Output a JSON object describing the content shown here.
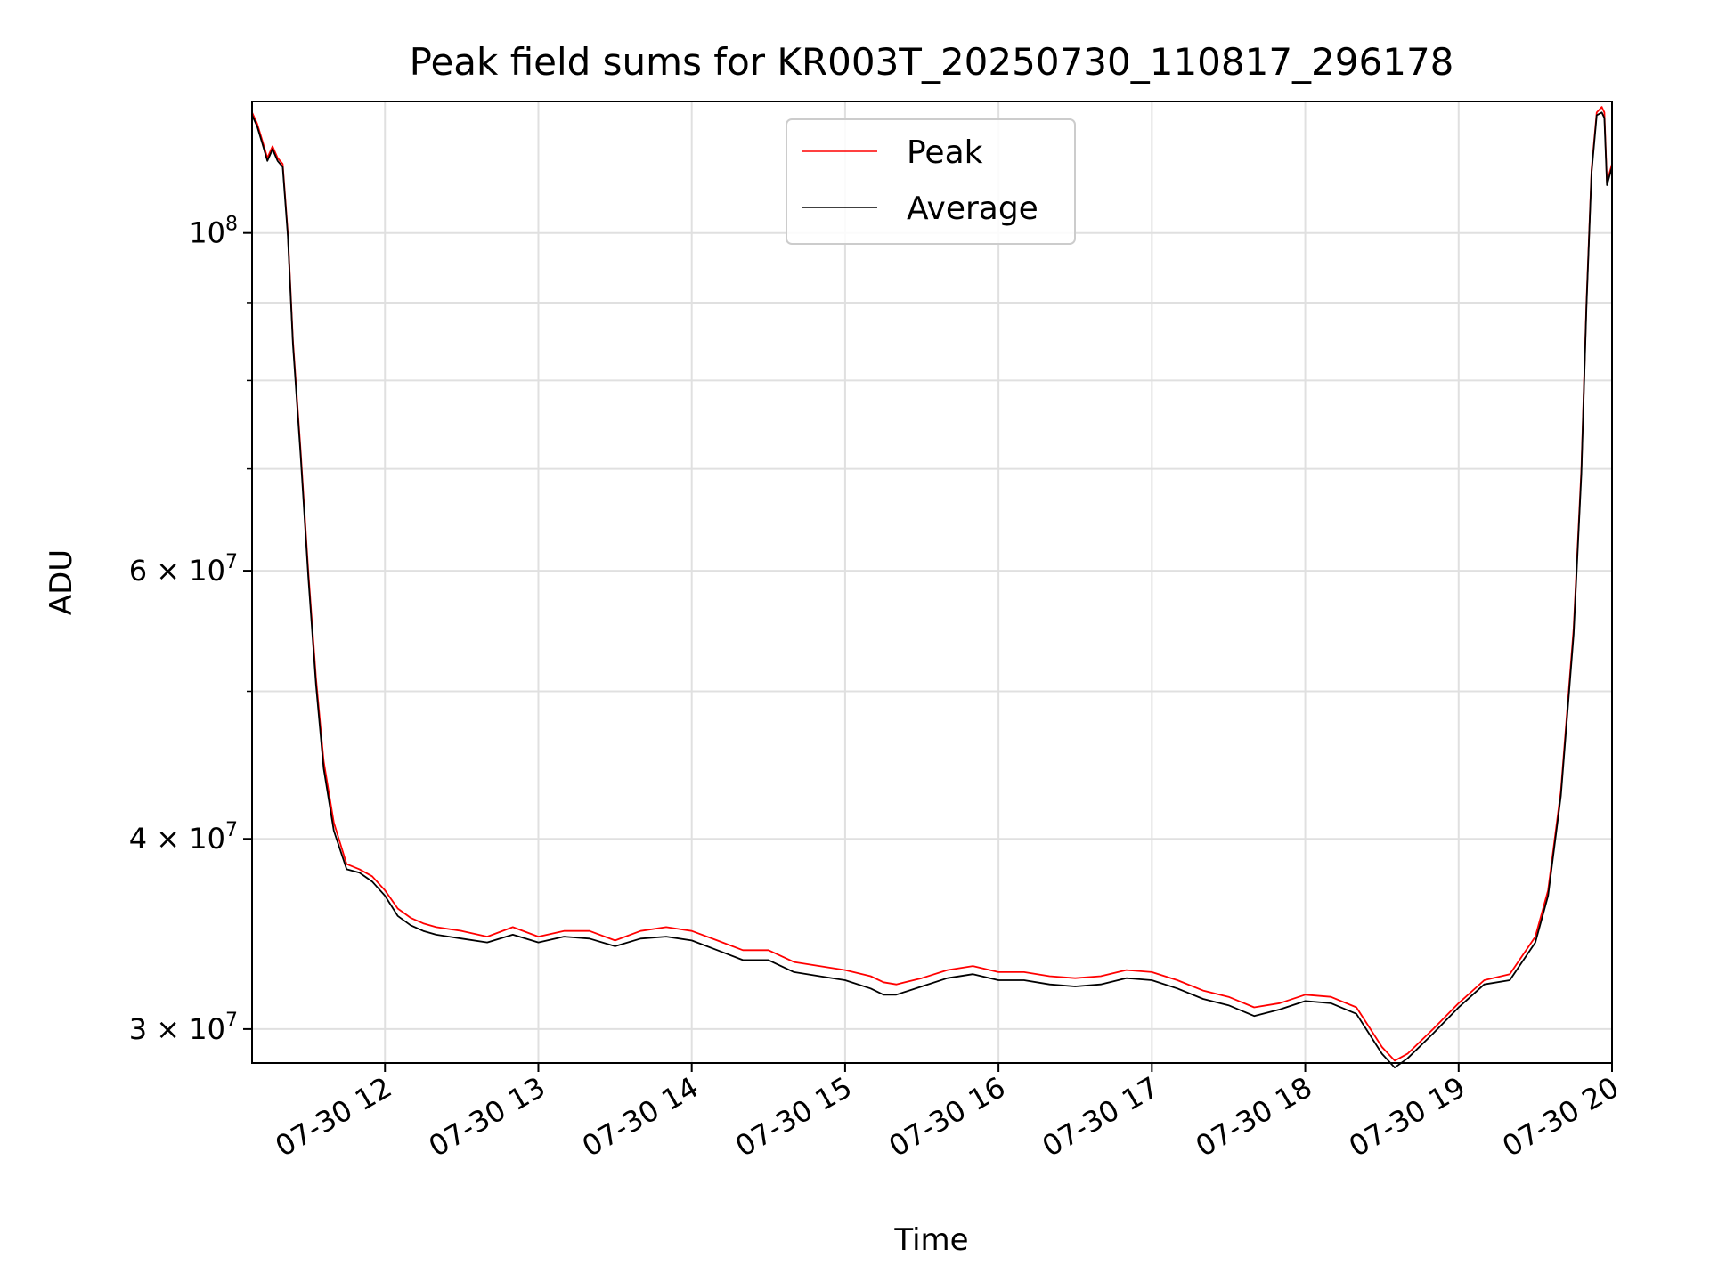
{
  "chart_data": {
    "type": "line",
    "title": "Peak field sums for KR003T_20250730_110817_296178",
    "xlabel": "Time",
    "ylabel": "ADU",
    "yscale": "log",
    "xlim": [
      "2025-07-30 11:08",
      "2025-07-30 20:00"
    ],
    "ylim": [
      28500000,
      122000000
    ],
    "grid": true,
    "legend_position": "upper center",
    "x_ticks": [
      "07-30 12",
      "07-30 13",
      "07-30 14",
      "07-30 15",
      "07-30 16",
      "07-30 17",
      "07-30 18",
      "07-30 19",
      "07-30 20"
    ],
    "y_ticks": [
      {
        "value": 30000000,
        "label": "3 × 10",
        "exp": "7"
      },
      {
        "value": 40000000,
        "label": "4 × 10",
        "exp": "7"
      },
      {
        "value": 60000000,
        "label": "6 × 10",
        "exp": "7"
      },
      {
        "value": 100000000,
        "label": "10",
        "exp": "8"
      }
    ],
    "y_minor_ticks": [
      50000000,
      70000000,
      80000000,
      90000000
    ],
    "series": [
      {
        "name": "Peak",
        "color": "#ff0000",
        "x": [
          "11:08",
          "11:10",
          "11:12",
          "11:14",
          "11:16",
          "11:18",
          "11:20",
          "11:22",
          "11:24",
          "11:27",
          "11:30",
          "11:33",
          "11:36",
          "11:40",
          "11:45",
          "11:50",
          "11:55",
          "12:00",
          "12:05",
          "12:10",
          "12:15",
          "12:20",
          "12:30",
          "12:40",
          "12:50",
          "13:00",
          "13:10",
          "13:20",
          "13:30",
          "13:40",
          "13:50",
          "14:00",
          "14:10",
          "14:20",
          "14:30",
          "14:40",
          "14:50",
          "15:00",
          "15:10",
          "15:15",
          "15:20",
          "15:30",
          "15:40",
          "15:50",
          "16:00",
          "16:10",
          "16:20",
          "16:30",
          "16:40",
          "16:50",
          "17:00",
          "17:10",
          "17:20",
          "17:30",
          "17:40",
          "17:50",
          "18:00",
          "18:10",
          "18:20",
          "18:30",
          "18:35",
          "18:40",
          "18:50",
          "19:00",
          "19:10",
          "19:20",
          "19:30",
          "19:35",
          "19:40",
          "19:45",
          "19:48",
          "19:50",
          "19:52",
          "19:54",
          "19:56",
          "19:57",
          "19:58",
          "20:00"
        ],
        "values": [
          120000000,
          118000000,
          115000000,
          112000000,
          114000000,
          112000000,
          111000000,
          100000000,
          85000000,
          72000000,
          60000000,
          51000000,
          45000000,
          41000000,
          38500000,
          38200000,
          37800000,
          37000000,
          36000000,
          35500000,
          35200000,
          35000000,
          34800000,
          34500000,
          35000000,
          34500000,
          34800000,
          34800000,
          34300000,
          34800000,
          35000000,
          34800000,
          34300000,
          33800000,
          33800000,
          33200000,
          33000000,
          32800000,
          32500000,
          32200000,
          32100000,
          32400000,
          32800000,
          33000000,
          32700000,
          32700000,
          32500000,
          32400000,
          32500000,
          32800000,
          32700000,
          32300000,
          31800000,
          31500000,
          31000000,
          31200000,
          31600000,
          31500000,
          31000000,
          29200000,
          28600000,
          28900000,
          30000000,
          31200000,
          32300000,
          32600000,
          34500000,
          37000000,
          43000000,
          55000000,
          70000000,
          90000000,
          110000000,
          120000000,
          121000000,
          120000000,
          108000000,
          111000000
        ]
      },
      {
        "name": "Average",
        "color": "#000000",
        "x": [
          "11:08",
          "11:10",
          "11:12",
          "11:14",
          "11:16",
          "11:18",
          "11:20",
          "11:22",
          "11:24",
          "11:27",
          "11:30",
          "11:33",
          "11:36",
          "11:40",
          "11:45",
          "11:50",
          "11:55",
          "12:00",
          "12:05",
          "12:10",
          "12:15",
          "12:20",
          "12:30",
          "12:40",
          "12:50",
          "13:00",
          "13:10",
          "13:20",
          "13:30",
          "13:40",
          "13:50",
          "14:00",
          "14:10",
          "14:20",
          "14:30",
          "14:40",
          "14:50",
          "15:00",
          "15:10",
          "15:15",
          "15:20",
          "15:30",
          "15:40",
          "15:50",
          "16:00",
          "16:10",
          "16:20",
          "16:30",
          "16:40",
          "16:50",
          "17:00",
          "17:10",
          "17:20",
          "17:30",
          "17:40",
          "17:50",
          "18:00",
          "18:10",
          "18:20",
          "18:30",
          "18:35",
          "18:40",
          "18:50",
          "19:00",
          "19:10",
          "19:20",
          "19:30",
          "19:35",
          "19:40",
          "19:45",
          "19:48",
          "19:50",
          "19:52",
          "19:54",
          "19:56",
          "19:57",
          "19:58",
          "20:00"
        ],
        "values": [
          119500000,
          117500000,
          114500000,
          111500000,
          113500000,
          111500000,
          110500000,
          99500000,
          84500000,
          71500000,
          59500000,
          50500000,
          44500000,
          40500000,
          38200000,
          38000000,
          37500000,
          36700000,
          35600000,
          35100000,
          34800000,
          34600000,
          34400000,
          34200000,
          34600000,
          34200000,
          34500000,
          34400000,
          34000000,
          34400000,
          34500000,
          34300000,
          33800000,
          33300000,
          33300000,
          32700000,
          32500000,
          32300000,
          31900000,
          31600000,
          31600000,
          32000000,
          32400000,
          32600000,
          32300000,
          32300000,
          32100000,
          32000000,
          32100000,
          32400000,
          32300000,
          31900000,
          31400000,
          31100000,
          30600000,
          30900000,
          31300000,
          31200000,
          30700000,
          28900000,
          28300000,
          28700000,
          29800000,
          31000000,
          32100000,
          32300000,
          34200000,
          36700000,
          42700000,
          54500000,
          69500000,
          89500000,
          109500000,
          119500000,
          120000000,
          119000000,
          107500000,
          110500000
        ]
      }
    ]
  }
}
